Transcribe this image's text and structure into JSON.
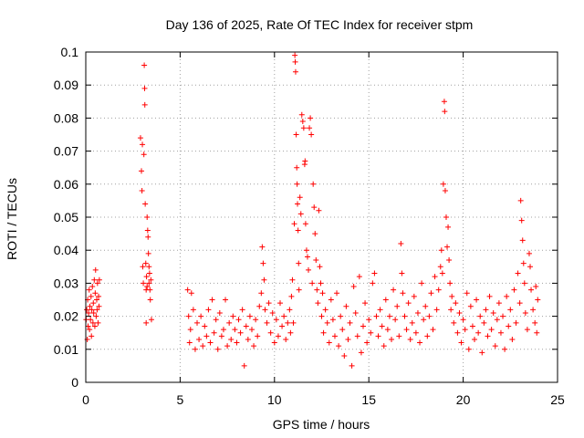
{
  "chart_data": {
    "type": "scatter",
    "title": "Day 136 of 2025, Rate Of TEC Index for receiver stpm",
    "xlabel": "GPS time / hours",
    "ylabel": "ROTI / TECUs",
    "xlim": [
      0,
      25
    ],
    "ylim": [
      0,
      0.1
    ],
    "x_ticks": [
      "0",
      "5",
      "10",
      "15",
      "20",
      "25"
    ],
    "y_ticks": [
      "0",
      "0.01",
      "0.02",
      "0.03",
      "0.04",
      "0.05",
      "0.06",
      "0.07",
      "0.08",
      "0.09",
      "0.1"
    ],
    "grid": true,
    "marker": "+",
    "marker_color": "#ff0000",
    "series": [
      {
        "points": [
          [
            0.02,
            0.019
          ],
          [
            0.05,
            0.022
          ],
          [
            0.08,
            0.013
          ],
          [
            0.1,
            0.025
          ],
          [
            0.12,
            0.017
          ],
          [
            0.15,
            0.021
          ],
          [
            0.18,
            0.028
          ],
          [
            0.2,
            0.016
          ],
          [
            0.22,
            0.023
          ],
          [
            0.25,
            0.019
          ],
          [
            0.28,
            0.026
          ],
          [
            0.3,
            0.014
          ],
          [
            0.32,
            0.022
          ],
          [
            0.35,
            0.029
          ],
          [
            0.38,
            0.018
          ],
          [
            0.4,
            0.024
          ],
          [
            0.42,
            0.021
          ],
          [
            0.45,
            0.031
          ],
          [
            0.48,
            0.017
          ],
          [
            0.5,
            0.027
          ],
          [
            0.52,
            0.034
          ],
          [
            0.55,
            0.02
          ],
          [
            0.58,
            0.025
          ],
          [
            0.6,
            0.022
          ],
          [
            0.62,
            0.03
          ],
          [
            0.65,
            0.018
          ],
          [
            0.68,
            0.026
          ],
          [
            0.7,
            0.023
          ],
          [
            0.72,
            0.031
          ],
          [
            2.9,
            0.074
          ],
          [
            2.95,
            0.064
          ],
          [
            2.98,
            0.058
          ],
          [
            3.0,
            0.072
          ],
          [
            3.02,
            0.035
          ],
          [
            3.05,
            0.03
          ],
          [
            3.08,
            0.069
          ],
          [
            3.1,
            0.096
          ],
          [
            3.12,
            0.089
          ],
          [
            3.13,
            0.084
          ],
          [
            3.15,
            0.054
          ],
          [
            3.18,
            0.036
          ],
          [
            3.2,
            0.028
          ],
          [
            3.22,
            0.032
          ],
          [
            3.25,
            0.05
          ],
          [
            3.28,
            0.046
          ],
          [
            3.3,
            0.044
          ],
          [
            3.32,
            0.039
          ],
          [
            3.35,
            0.03
          ],
          [
            3.38,
            0.033
          ],
          [
            3.4,
            0.028
          ],
          [
            3.42,
            0.025
          ],
          [
            3.45,
            0.031
          ],
          [
            3.48,
            0.019
          ],
          [
            3.2,
            0.018
          ],
          [
            3.25,
            0.029
          ],
          [
            3.35,
            0.035
          ],
          [
            5.4,
            0.028
          ],
          [
            5.45,
            0.02
          ],
          [
            5.5,
            0.012
          ],
          [
            5.55,
            0.016
          ],
          [
            5.6,
            0.027
          ],
          [
            5.7,
            0.022
          ],
          [
            5.8,
            0.01
          ],
          [
            5.9,
            0.018
          ],
          [
            6.0,
            0.013
          ],
          [
            6.1,
            0.02
          ],
          [
            6.2,
            0.011
          ],
          [
            6.3,
            0.017
          ],
          [
            6.4,
            0.014
          ],
          [
            6.5,
            0.022
          ],
          [
            6.6,
            0.012
          ],
          [
            6.7,
            0.025
          ],
          [
            6.8,
            0.015
          ],
          [
            6.9,
            0.019
          ],
          [
            7.0,
            0.01
          ],
          [
            7.1,
            0.021
          ],
          [
            7.2,
            0.014
          ],
          [
            7.3,
            0.016
          ],
          [
            7.4,
            0.025
          ],
          [
            7.5,
            0.011
          ],
          [
            7.6,
            0.018
          ],
          [
            7.7,
            0.013
          ],
          [
            7.8,
            0.02
          ],
          [
            7.9,
            0.016
          ],
          [
            8.0,
            0.012
          ],
          [
            8.1,
            0.019
          ],
          [
            8.2,
            0.015
          ],
          [
            8.3,
            0.022
          ],
          [
            8.4,
            0.005
          ],
          [
            8.5,
            0.017
          ],
          [
            8.6,
            0.013
          ],
          [
            8.7,
            0.02
          ],
          [
            8.8,
            0.016
          ],
          [
            8.9,
            0.011
          ],
          [
            9.0,
            0.019
          ],
          [
            9.1,
            0.014
          ],
          [
            9.2,
            0.023
          ],
          [
            9.3,
            0.027
          ],
          [
            9.35,
            0.041
          ],
          [
            9.4,
            0.036
          ],
          [
            9.45,
            0.031
          ],
          [
            9.5,
            0.022
          ],
          [
            9.6,
            0.018
          ],
          [
            9.7,
            0.024
          ],
          [
            9.8,
            0.015
          ],
          [
            9.9,
            0.021
          ],
          [
            10.0,
            0.012
          ],
          [
            10.1,
            0.019
          ],
          [
            10.2,
            0.014
          ],
          [
            10.3,
            0.024
          ],
          [
            10.4,
            0.017
          ],
          [
            10.5,
            0.02
          ],
          [
            10.6,
            0.013
          ],
          [
            10.7,
            0.018
          ],
          [
            10.8,
            0.022
          ],
          [
            10.85,
            0.015
          ],
          [
            10.9,
            0.026
          ],
          [
            10.95,
            0.031
          ],
          [
            11.0,
            0.018
          ],
          [
            11.05,
            0.048
          ],
          [
            11.08,
            0.099
          ],
          [
            11.1,
            0.097
          ],
          [
            11.12,
            0.094
          ],
          [
            11.15,
            0.075
          ],
          [
            11.18,
            0.065
          ],
          [
            11.2,
            0.06
          ],
          [
            11.22,
            0.054
          ],
          [
            11.25,
            0.046
          ],
          [
            11.28,
            0.036
          ],
          [
            11.3,
            0.028
          ],
          [
            11.35,
            0.056
          ],
          [
            11.4,
            0.051
          ],
          [
            11.45,
            0.081
          ],
          [
            11.5,
            0.079
          ],
          [
            11.55,
            0.077
          ],
          [
            11.6,
            0.066
          ],
          [
            11.62,
            0.067
          ],
          [
            11.65,
            0.048
          ],
          [
            11.7,
            0.04
          ],
          [
            11.75,
            0.038
          ],
          [
            11.8,
            0.034
          ],
          [
            11.85,
            0.077
          ],
          [
            11.9,
            0.08
          ],
          [
            11.95,
            0.075
          ],
          [
            12.0,
            0.03
          ],
          [
            12.05,
            0.06
          ],
          [
            12.1,
            0.053
          ],
          [
            12.15,
            0.045
          ],
          [
            12.2,
            0.037
          ],
          [
            12.25,
            0.028
          ],
          [
            12.3,
            0.024
          ],
          [
            12.35,
            0.052
          ],
          [
            12.4,
            0.035
          ],
          [
            12.45,
            0.03
          ],
          [
            12.5,
            0.02
          ],
          [
            12.55,
            0.027
          ],
          [
            12.6,
            0.015
          ],
          [
            12.7,
            0.022
          ],
          [
            12.8,
            0.018
          ],
          [
            12.9,
            0.012
          ],
          [
            13.0,
            0.025
          ],
          [
            13.1,
            0.019
          ],
          [
            13.2,
            0.014
          ],
          [
            13.3,
            0.027
          ],
          [
            13.4,
            0.011
          ],
          [
            13.5,
            0.02
          ],
          [
            13.6,
            0.016
          ],
          [
            13.7,
            0.008
          ],
          [
            13.8,
            0.023
          ],
          [
            13.9,
            0.013
          ],
          [
            14.0,
            0.018
          ],
          [
            14.1,
            0.005
          ],
          [
            14.2,
            0.029
          ],
          [
            14.3,
            0.021
          ],
          [
            14.4,
            0.014
          ],
          [
            14.5,
            0.032
          ],
          [
            14.6,
            0.009
          ],
          [
            14.7,
            0.017
          ],
          [
            14.8,
            0.024
          ],
          [
            14.9,
            0.012
          ],
          [
            15.0,
            0.019
          ],
          [
            15.1,
            0.015
          ],
          [
            15.2,
            0.03
          ],
          [
            15.3,
            0.033
          ],
          [
            15.4,
            0.02
          ],
          [
            15.5,
            0.014
          ],
          [
            15.6,
            0.022
          ],
          [
            15.7,
            0.017
          ],
          [
            15.8,
            0.011
          ],
          [
            15.9,
            0.025
          ],
          [
            16.0,
            0.016
          ],
          [
            16.1,
            0.02
          ],
          [
            16.2,
            0.013
          ],
          [
            16.3,
            0.028
          ],
          [
            16.4,
            0.019
          ],
          [
            16.5,
            0.023
          ],
          [
            16.6,
            0.014
          ],
          [
            16.7,
            0.042
          ],
          [
            16.75,
            0.033
          ],
          [
            16.8,
            0.027
          ],
          [
            16.9,
            0.02
          ],
          [
            17.0,
            0.016
          ],
          [
            17.1,
            0.024
          ],
          [
            17.2,
            0.013
          ],
          [
            17.3,
            0.018
          ],
          [
            17.4,
            0.026
          ],
          [
            17.5,
            0.015
          ],
          [
            17.6,
            0.021
          ],
          [
            17.7,
            0.012
          ],
          [
            17.8,
            0.03
          ],
          [
            17.9,
            0.019
          ],
          [
            18.0,
            0.023
          ],
          [
            18.1,
            0.014
          ],
          [
            18.2,
            0.02
          ],
          [
            18.3,
            0.027
          ],
          [
            18.4,
            0.016
          ],
          [
            18.5,
            0.032
          ],
          [
            18.6,
            0.022
          ],
          [
            18.7,
            0.028
          ],
          [
            18.8,
            0.035
          ],
          [
            18.85,
            0.04
          ],
          [
            18.9,
            0.033
          ],
          [
            18.95,
            0.06
          ],
          [
            19.0,
            0.085
          ],
          [
            19.02,
            0.082
          ],
          [
            19.05,
            0.058
          ],
          [
            19.1,
            0.05
          ],
          [
            19.15,
            0.041
          ],
          [
            19.2,
            0.047
          ],
          [
            19.25,
            0.037
          ],
          [
            19.3,
            0.03
          ],
          [
            19.35,
            0.022
          ],
          [
            19.4,
            0.026
          ],
          [
            19.5,
            0.018
          ],
          [
            19.6,
            0.024
          ],
          [
            19.7,
            0.015
          ],
          [
            19.8,
            0.021
          ],
          [
            19.9,
            0.012
          ],
          [
            20.0,
            0.019
          ],
          [
            20.1,
            0.016
          ],
          [
            20.2,
            0.027
          ],
          [
            20.3,
            0.01
          ],
          [
            20.4,
            0.023
          ],
          [
            20.5,
            0.017
          ],
          [
            20.6,
            0.013
          ],
          [
            20.7,
            0.025
          ],
          [
            20.8,
            0.015
          ],
          [
            20.9,
            0.02
          ],
          [
            21.0,
            0.009
          ],
          [
            21.1,
            0.018
          ],
          [
            21.2,
            0.022
          ],
          [
            21.3,
            0.014
          ],
          [
            21.4,
            0.026
          ],
          [
            21.5,
            0.016
          ],
          [
            21.6,
            0.021
          ],
          [
            21.7,
            0.011
          ],
          [
            21.8,
            0.019
          ],
          [
            21.9,
            0.024
          ],
          [
            22.0,
            0.015
          ],
          [
            22.1,
            0.02
          ],
          [
            22.2,
            0.01
          ],
          [
            22.3,
            0.026
          ],
          [
            22.4,
            0.017
          ],
          [
            22.5,
            0.022
          ],
          [
            22.6,
            0.013
          ],
          [
            22.7,
            0.028
          ],
          [
            22.8,
            0.018
          ],
          [
            22.9,
            0.033
          ],
          [
            23.0,
            0.024
          ],
          [
            23.05,
            0.055
          ],
          [
            23.1,
            0.049
          ],
          [
            23.15,
            0.043
          ],
          [
            23.2,
            0.036
          ],
          [
            23.25,
            0.03
          ],
          [
            23.3,
            0.021
          ],
          [
            23.4,
            0.016
          ],
          [
            23.5,
            0.039
          ],
          [
            23.55,
            0.035
          ],
          [
            23.6,
            0.028
          ],
          [
            23.7,
            0.022
          ],
          [
            23.8,
            0.018
          ],
          [
            23.85,
            0.029
          ],
          [
            23.9,
            0.015
          ],
          [
            23.95,
            0.025
          ]
        ]
      }
    ]
  }
}
